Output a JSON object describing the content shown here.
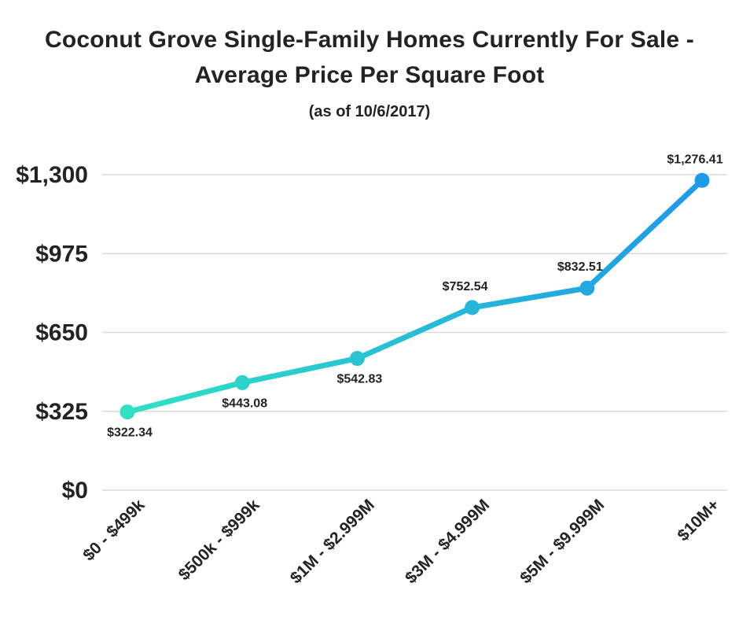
{
  "page": {
    "background_color": "#ffffff",
    "text_color": "#232323"
  },
  "header": {
    "title_line1": "Coconut Grove Single-Family Homes Currently For Sale -",
    "title_line2": "Average Price Per Square Foot",
    "subtitle": "(as of 10/6/2017)"
  },
  "chart_data": {
    "type": "line",
    "title": "Coconut Grove Single-Family Homes Currently For Sale - Average Price Per Square Foot",
    "subtitle": "(as of 10/6/2017)",
    "categories": [
      "$0 - $499k",
      "$500k - $999k",
      "$1M - $2.999M",
      "$3M - $4.999M",
      "$5M - $9.999M",
      "$10M+"
    ],
    "values": [
      322.34,
      443.08,
      542.83,
      752.54,
      832.51,
      1276.41
    ],
    "point_labels": [
      "$322.34",
      "$443.08",
      "$542.83",
      "$752.54",
      "$832.51",
      "$1,276.41"
    ],
    "point_label_positions": [
      "below",
      "below",
      "below",
      "above",
      "above",
      "above"
    ],
    "y_ticks": [
      0,
      325,
      650,
      975,
      1300
    ],
    "y_tick_labels": [
      "$0",
      "$325",
      "$650",
      "$975",
      "$1,300"
    ],
    "ylim": [
      0,
      1300
    ],
    "grid": true,
    "legend": "none",
    "x_label_rotation_deg": -45,
    "colors": {
      "line_gradient_start": "#30E1C2",
      "line_gradient_end": "#1E9AEA",
      "grid_color": "#d9d9d9",
      "text_color": "#232323"
    }
  }
}
